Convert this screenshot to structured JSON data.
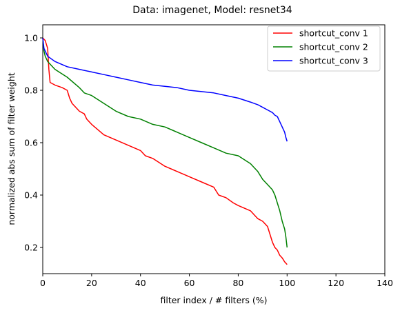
{
  "chart_data": {
    "type": "line",
    "title": "Data: imagenet, Model: resnet34",
    "xlabel": "filter index / # filters (%)",
    "ylabel": "normalized abs sum of filter weight",
    "xlim": [
      0,
      140
    ],
    "ylim": [
      0.1,
      1.05
    ],
    "xticks": [
      "0",
      "20",
      "40",
      "60",
      "80",
      "100",
      "120",
      "140"
    ],
    "xtick_values": [
      0,
      20,
      40,
      60,
      80,
      100,
      120,
      140
    ],
    "yticks": [
      "0.2",
      "0.4",
      "0.6",
      "0.8",
      "1.0"
    ],
    "ytick_values": [
      0.2,
      0.4,
      0.6,
      0.8,
      1.0
    ],
    "grid": false,
    "legend_position": "top-right",
    "series": [
      {
        "name": "shortcut_conv 1",
        "color": "#ff0000",
        "x": [
          0,
          1,
          2,
          2.5,
          3,
          5,
          8,
          10,
          11,
          12,
          15,
          17,
          18,
          20,
          25,
          30,
          35,
          40,
          42,
          45,
          50,
          55,
          60,
          65,
          70,
          72,
          75,
          78,
          80,
          85,
          88,
          90,
          92,
          93,
          94,
          95,
          96,
          97,
          98,
          99,
          100
        ],
        "values": [
          1.0,
          0.99,
          0.96,
          0.88,
          0.83,
          0.82,
          0.81,
          0.8,
          0.77,
          0.75,
          0.72,
          0.71,
          0.69,
          0.67,
          0.63,
          0.61,
          0.59,
          0.57,
          0.55,
          0.54,
          0.51,
          0.49,
          0.47,
          0.45,
          0.43,
          0.4,
          0.39,
          0.37,
          0.36,
          0.34,
          0.31,
          0.3,
          0.28,
          0.25,
          0.22,
          0.2,
          0.19,
          0.17,
          0.16,
          0.145,
          0.135
        ]
      },
      {
        "name": "shortcut_conv 2",
        "color": "#008000",
        "x": [
          0,
          0.5,
          1,
          2,
          5,
          10,
          15,
          17,
          20,
          25,
          30,
          35,
          40,
          45,
          50,
          55,
          60,
          65,
          70,
          75,
          80,
          85,
          88,
          90,
          92,
          94,
          95,
          96,
          97,
          98,
          99,
          99.5,
          100
        ],
        "values": [
          1.0,
          0.95,
          0.93,
          0.91,
          0.88,
          0.85,
          0.81,
          0.79,
          0.78,
          0.75,
          0.72,
          0.7,
          0.69,
          0.67,
          0.66,
          0.64,
          0.62,
          0.6,
          0.58,
          0.56,
          0.55,
          0.52,
          0.49,
          0.46,
          0.44,
          0.42,
          0.4,
          0.37,
          0.34,
          0.3,
          0.27,
          0.24,
          0.2
        ]
      },
      {
        "name": "shortcut_conv 3",
        "color": "#0000ff",
        "x": [
          0,
          0.5,
          1,
          2,
          5,
          10,
          15,
          20,
          25,
          30,
          35,
          40,
          45,
          50,
          55,
          60,
          65,
          70,
          75,
          80,
          85,
          88,
          90,
          92,
          94,
          95,
          96,
          97,
          98,
          99,
          99.5,
          100
        ],
        "values": [
          1.0,
          0.96,
          0.95,
          0.93,
          0.91,
          0.89,
          0.88,
          0.87,
          0.86,
          0.85,
          0.84,
          0.83,
          0.82,
          0.815,
          0.81,
          0.8,
          0.795,
          0.79,
          0.78,
          0.77,
          0.755,
          0.745,
          0.735,
          0.725,
          0.715,
          0.705,
          0.7,
          0.68,
          0.66,
          0.64,
          0.62,
          0.605
        ]
      }
    ]
  }
}
